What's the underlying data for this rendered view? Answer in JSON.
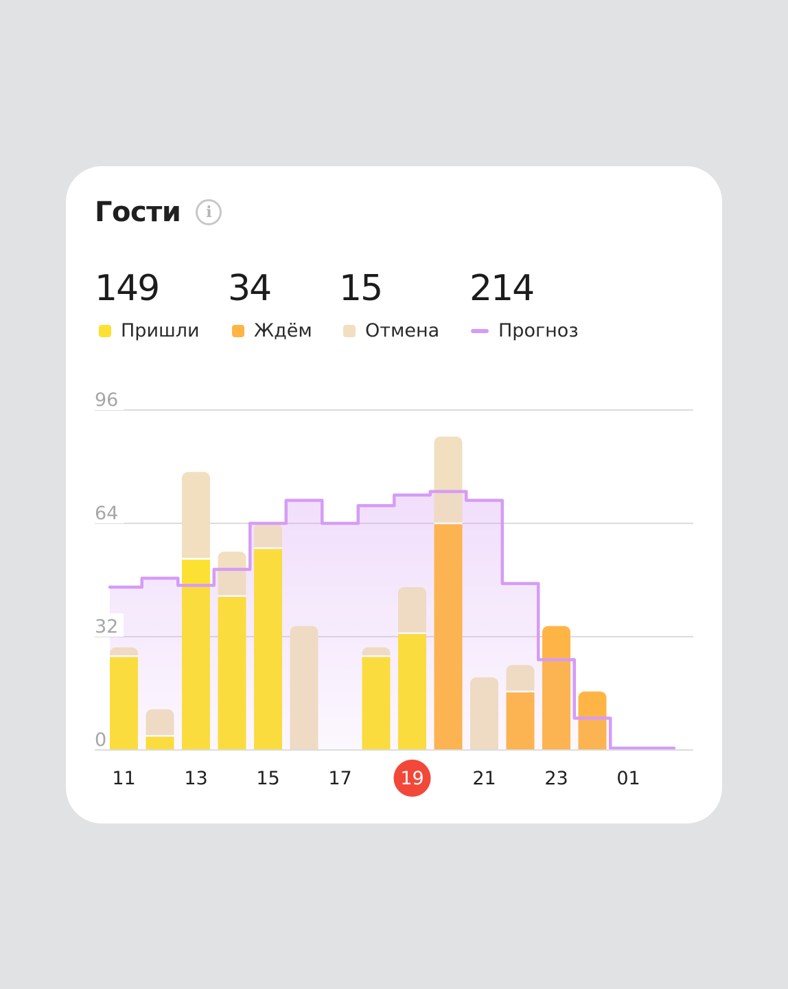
{
  "card": {
    "title": "Гости",
    "info_icon": "info-icon"
  },
  "stats": [
    {
      "value": "149",
      "label": "Пришли",
      "color": "#fde132",
      "kind": "square"
    },
    {
      "value": "34",
      "label": "Ждём",
      "color": "#ffb545",
      "kind": "square"
    },
    {
      "value": "15",
      "label": "Отмена",
      "color": "#f1dfc0",
      "kind": "square"
    },
    {
      "value": "214",
      "label": "Прогноз",
      "color": "#d59cf5",
      "kind": "line"
    }
  ],
  "colors": {
    "arrived": "#fde132",
    "waiting": "#ffb545",
    "cancel": "#f1dfc0",
    "forecast": "#d59cf5",
    "highlight": "#f1483a"
  },
  "chart_data": {
    "type": "bar",
    "title": "Гости",
    "ylim": [
      0,
      96
    ],
    "yticks": [
      0,
      32,
      64,
      96
    ],
    "x_hours": [
      11,
      12,
      13,
      14,
      15,
      16,
      17,
      18,
      19,
      20,
      21,
      22,
      23,
      0,
      1
    ],
    "x_tick_labels": [
      "11",
      "13",
      "15",
      "17",
      "19",
      "21",
      "23",
      "01"
    ],
    "highlighted_tick": "19",
    "series": [
      {
        "name": "Пришли",
        "values": [
          26.5,
          4,
          54,
          43.5,
          57,
          0,
          0,
          26.5,
          33,
          0,
          0,
          0,
          0,
          0,
          0
        ]
      },
      {
        "name": "Ждём",
        "values": [
          0,
          0,
          0,
          0,
          0,
          0,
          0,
          0,
          0,
          64,
          0,
          16.5,
          35,
          16.5,
          0
        ]
      },
      {
        "name": "Отмена",
        "values": [
          2.5,
          7.5,
          24.5,
          12.5,
          7,
          35,
          0,
          2.5,
          13,
          24.5,
          20.5,
          7.5,
          0,
          0,
          0
        ]
      }
    ],
    "forecast": {
      "name": "Прогноз",
      "values": [
        46,
        48.5,
        46.5,
        51,
        64,
        70.5,
        64,
        69,
        72,
        73,
        70.5,
        47,
        25.5,
        9,
        0.5
      ]
    },
    "grid": true
  }
}
